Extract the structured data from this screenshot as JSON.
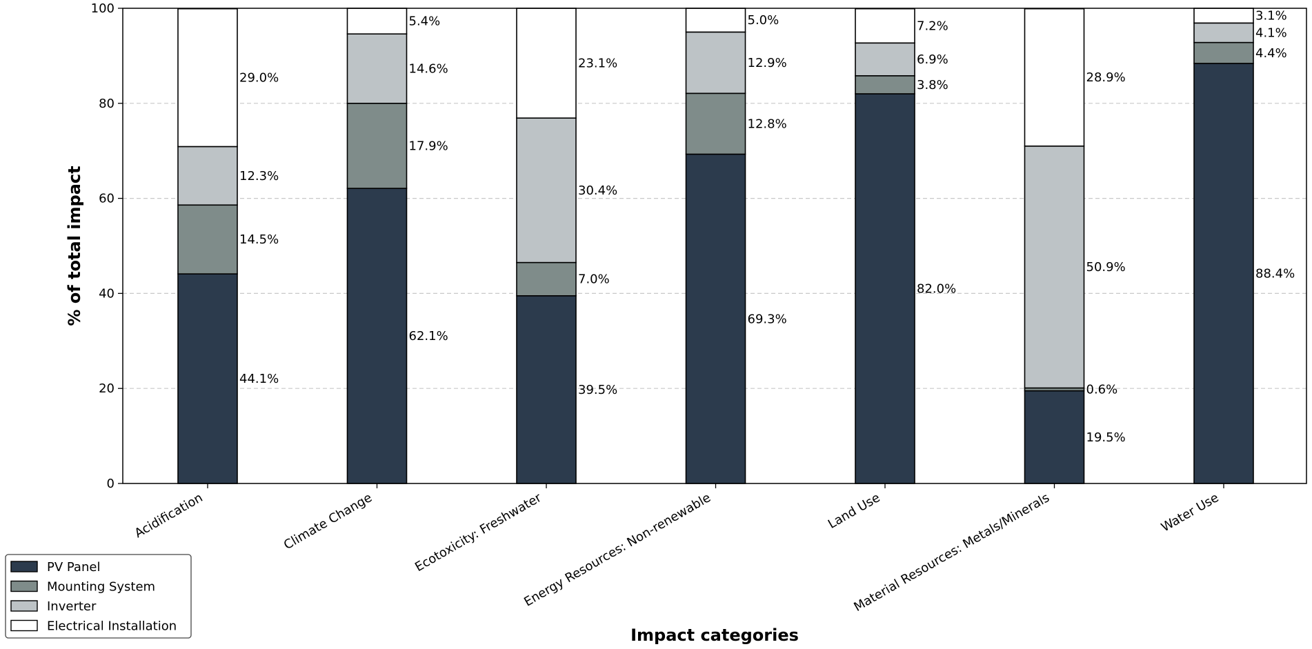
{
  "chart_data": {
    "type": "bar",
    "stacked": true,
    "title": "",
    "xlabel": "Impact categories",
    "ylabel": "% of total impact",
    "ylim": [
      0,
      100
    ],
    "yticks": [
      "0",
      "20",
      "40",
      "60",
      "80",
      "100"
    ],
    "grid": "y-dashed",
    "legend_position": "bottom-left",
    "categories": [
      "Acidification",
      "Climate Change",
      "Ecotoxicity: Freshwater",
      "Energy Resources: Non-renewable",
      "Land Use",
      "Material Resources: Metals/Minerals",
      "Water Use"
    ],
    "series": [
      {
        "name": "PV Panel",
        "color": "#2c3b4d",
        "values": [
          44.1,
          62.1,
          39.5,
          69.3,
          82.0,
          19.5,
          88.4
        ],
        "labels": [
          "44.1%",
          "62.1%",
          "39.5%",
          "69.3%",
          "82.0%",
          "19.5%",
          "88.4%"
        ]
      },
      {
        "name": "Mounting System",
        "color": "#7f8c8a",
        "values": [
          14.5,
          17.9,
          7.0,
          12.8,
          3.8,
          0.6,
          4.4
        ],
        "labels": [
          "14.5%",
          "17.9%",
          "7.0%",
          "12.8%",
          "3.8%",
          "0.6%",
          "4.4%"
        ]
      },
      {
        "name": "Inverter",
        "color": "#bdc3c6",
        "values": [
          12.3,
          14.6,
          30.4,
          12.9,
          6.9,
          50.9,
          4.1
        ],
        "labels": [
          "12.3%",
          "14.6%",
          "30.4%",
          "12.9%",
          "6.9%",
          "50.9%",
          "4.1%"
        ]
      },
      {
        "name": "Electrical Installation",
        "color": "#ffffff",
        "values": [
          29.0,
          5.4,
          23.1,
          5.0,
          7.2,
          28.9,
          3.1
        ],
        "labels": [
          "29.0%",
          "5.4%",
          "23.1%",
          "5.0%",
          "7.2%",
          "28.9%",
          "3.1%"
        ]
      }
    ]
  }
}
